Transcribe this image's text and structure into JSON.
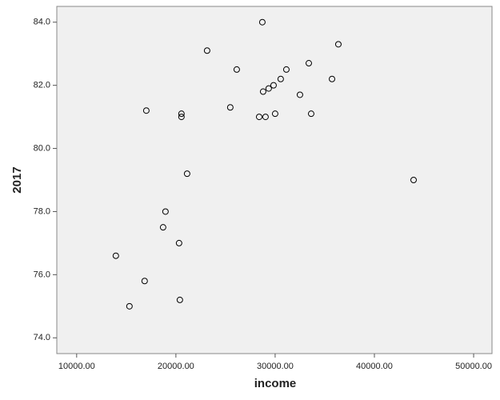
{
  "chart_data": {
    "type": "scatter",
    "x_label": "income",
    "y_label": "2017",
    "xlim": [
      8000,
      51850
    ],
    "ylim": [
      73.5,
      84.5
    ],
    "xticks": [
      {
        "value": 10000,
        "label": "10000.00"
      },
      {
        "value": 20000,
        "label": "20000.00"
      },
      {
        "value": 30000,
        "label": "30000.00"
      },
      {
        "value": 40000,
        "label": "40000.00"
      },
      {
        "value": 50000,
        "label": "50000.00"
      }
    ],
    "yticks": [
      {
        "value": 74,
        "label": "74.0"
      },
      {
        "value": 76,
        "label": "76.0"
      },
      {
        "value": 78,
        "label": "78.0"
      },
      {
        "value": 80,
        "label": "80.0"
      },
      {
        "value": 82,
        "label": "82.0"
      },
      {
        "value": 84,
        "label": "84.0"
      }
    ],
    "color": "#000000",
    "x": [
      28710,
      36370,
      23145,
      33390,
      26130,
      31130,
      35730,
      30560,
      29840,
      29350,
      28790,
      32500,
      25480,
      17020,
      20560,
      20560,
      30000,
      33630,
      28390,
      29030,
      43950,
      21130,
      18950,
      18710,
      20320,
      13950,
      16850,
      15320,
      20400
    ],
    "values": [
      84.0,
      83.3,
      83.1,
      82.7,
      82.5,
      82.5,
      82.2,
      82.2,
      82.0,
      81.9,
      81.8,
      81.7,
      81.3,
      81.2,
      81.1,
      81.0,
      81.1,
      81.1,
      81.0,
      81.0,
      79.0,
      79.2,
      78.0,
      77.5,
      77.0,
      76.6,
      75.8,
      75.0,
      75.2
    ]
  }
}
